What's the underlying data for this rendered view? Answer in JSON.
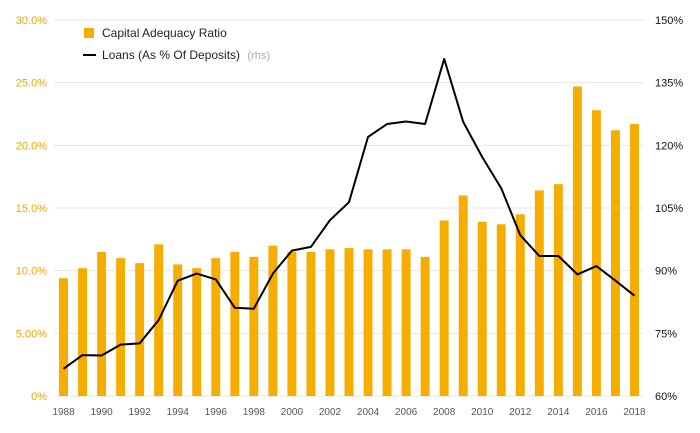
{
  "chart_data": {
    "type": "bar+line",
    "x": [
      1988,
      1989,
      1990,
      1991,
      1992,
      1993,
      1994,
      1995,
      1996,
      1997,
      1998,
      1999,
      2000,
      2001,
      2002,
      2003,
      2004,
      2005,
      2006,
      2007,
      2008,
      2009,
      2010,
      2011,
      2012,
      2013,
      2014,
      2015,
      2016,
      2017,
      2018
    ],
    "x_tick_labels": [
      "1988",
      "1990",
      "1992",
      "1994",
      "1996",
      "1998",
      "2000",
      "2002",
      "2004",
      "2006",
      "2008",
      "2010",
      "2012",
      "2014",
      "2016",
      "2018"
    ],
    "series": [
      {
        "name": "Capital Adequacy Ratio",
        "kind": "bar",
        "axis": "left",
        "color": "#f5ad00",
        "values": [
          9.4,
          10.2,
          11.5,
          11.0,
          10.6,
          12.1,
          10.5,
          10.2,
          11.0,
          11.5,
          11.1,
          12.0,
          11.5,
          11.5,
          11.7,
          11.8,
          11.7,
          11.7,
          11.7,
          11.1,
          14.0,
          16.0,
          13.9,
          13.7,
          14.5,
          16.4,
          16.9,
          24.7,
          22.8,
          21.2,
          21.7
        ]
      },
      {
        "name": "Loans (As % Of Deposits)",
        "name_suffix": "(rhs)",
        "kind": "line",
        "axis": "right",
        "color": "#000000",
        "values": [
          66.5,
          69.8,
          69.7,
          72.3,
          72.6,
          78.2,
          87.6,
          89.3,
          87.9,
          81.1,
          80.9,
          89.3,
          94.8,
          95.7,
          102.1,
          106.4,
          122.0,
          125.1,
          125.7,
          125.1,
          140.7,
          125.6,
          117.2,
          109.7,
          98.5,
          93.5,
          93.5,
          89.1,
          91.1,
          87.6,
          84.0
        ]
      }
    ],
    "y_left": {
      "ylim": [
        0,
        30
      ],
      "tick_labels": [
        "0%",
        "5.00%",
        "10.0%",
        "15.0%",
        "20.0%",
        "25.0%",
        "30.0%"
      ]
    },
    "y_right": {
      "ylim": [
        60,
        150
      ],
      "tick_labels": [
        "60%",
        "75%",
        "90%",
        "105%",
        "120%",
        "135%",
        "150%"
      ]
    },
    "grid": true,
    "legend_position": "top-left"
  }
}
